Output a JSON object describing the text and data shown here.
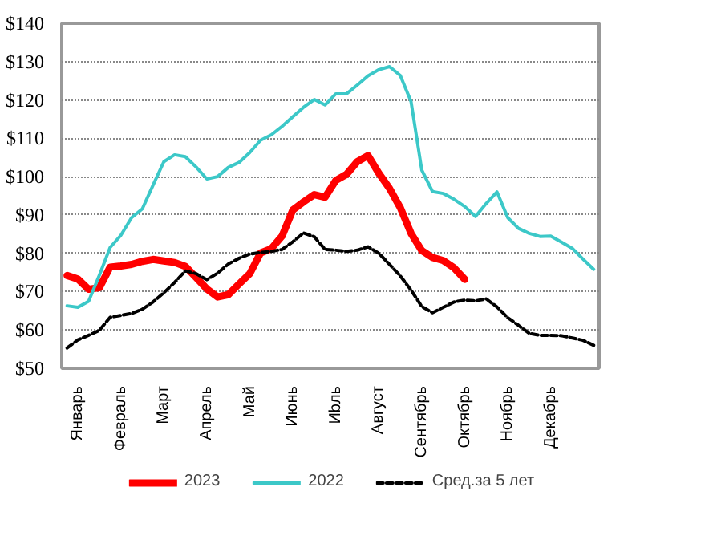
{
  "chart_data": {
    "type": "line",
    "ylim": [
      50,
      140
    ],
    "yticks": [
      {
        "value": 50,
        "label": "$50"
      },
      {
        "value": 60,
        "label": "$60"
      },
      {
        "value": 70,
        "label": "$70"
      },
      {
        "value": 80,
        "label": "$80"
      },
      {
        "value": 90,
        "label": "$90"
      },
      {
        "value": 100,
        "label": "$100"
      },
      {
        "value": 110,
        "label": "$110"
      },
      {
        "value": 120,
        "label": "$120"
      },
      {
        "value": 130,
        "label": "$130"
      },
      {
        "value": 140,
        "label": "$140"
      }
    ],
    "categories": [
      null,
      "Январь",
      null,
      null,
      null,
      "Февраль",
      null,
      null,
      null,
      "Март",
      null,
      null,
      null,
      "Апрель",
      null,
      null,
      null,
      "Май",
      null,
      null,
      null,
      "Июнь",
      null,
      null,
      null,
      "Иbль",
      null,
      null,
      null,
      "Август",
      null,
      null,
      null,
      "Сентябрь",
      null,
      null,
      null,
      "Октябрь",
      null,
      null,
      null,
      "Ноябрь",
      null,
      null,
      null,
      "Декабрь",
      null,
      null,
      null,
      null
    ],
    "grid": "y",
    "legend": "bottom",
    "series": [
      {
        "name": "2023",
        "color": "#ff0000",
        "line_style": "solid",
        "values": [
          74.2,
          73.3,
          70.6,
          71.0,
          76.4,
          76.7,
          77.1,
          77.9,
          78.4,
          78.0,
          77.6,
          76.6,
          73.7,
          70.7,
          68.6,
          69.2,
          72.0,
          74.7,
          80.1,
          81.2,
          84.5,
          91.3,
          93.4,
          95.3,
          94.6,
          99.0,
          100.6,
          103.9,
          105.5,
          100.9,
          96.9,
          91.9,
          85.2,
          80.7,
          78.9,
          78.1,
          76.2,
          73.2,
          null,
          null,
          null,
          null,
          null,
          null,
          null,
          null,
          null,
          null,
          null,
          null
        ]
      },
      {
        "name": "2022",
        "color": "#3cc8c8",
        "line_style": "solid",
        "values": [
          66.3,
          65.9,
          67.5,
          74.3,
          81.5,
          84.7,
          89.3,
          91.6,
          97.8,
          103.9,
          105.7,
          105.2,
          102.5,
          99.4,
          100.0,
          102.4,
          103.7,
          106.3,
          109.5,
          110.9,
          113.1,
          115.6,
          118.1,
          120.1,
          118.7,
          121.6,
          121.6,
          123.9,
          126.3,
          127.9,
          128.7,
          126.4,
          119.6,
          101.7,
          96.1,
          95.6,
          94.1,
          92.2,
          89.6,
          93.0,
          96.0,
          89.3,
          86.5,
          85.2,
          84.4,
          84.5,
          82.9,
          81.3,
          78.5,
          75.8
        ]
      },
      {
        "name": "Сред.за 5 лет",
        "color": "#000000",
        "line_style": "dashed",
        "values": [
          55.3,
          57.4,
          58.6,
          59.9,
          63.3,
          63.8,
          64.3,
          65.4,
          67.3,
          69.7,
          72.4,
          75.4,
          74.7,
          73.1,
          74.8,
          77.2,
          78.7,
          79.8,
          80.2,
          80.5,
          81.0,
          83.0,
          85.3,
          84.3,
          81.0,
          80.8,
          80.5,
          80.8,
          81.7,
          80.0,
          77.1,
          74.1,
          70.4,
          66.1,
          64.5,
          65.9,
          67.3,
          67.8,
          67.6,
          68.1,
          66.0,
          63.2,
          61.2,
          59.1,
          58.6,
          58.6,
          58.5,
          57.9,
          57.3,
          56.0
        ]
      }
    ]
  }
}
